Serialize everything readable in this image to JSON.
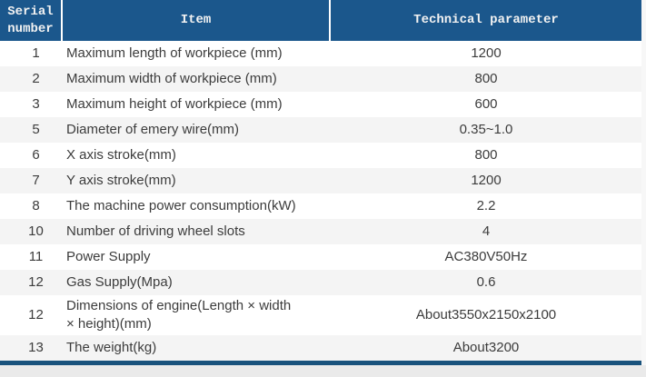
{
  "chart_data": {
    "type": "table",
    "columns": [
      "Serial number",
      "Item",
      "Technical parameter"
    ],
    "rows": [
      {
        "serial": "1",
        "item": "Maximum length of workpiece (mm)",
        "value": "1200"
      },
      {
        "serial": "2",
        "item": "Maximum width of workpiece (mm)",
        "value": "800"
      },
      {
        "serial": "3",
        "item": "Maximum height of workpiece (mm)",
        "value": "600"
      },
      {
        "serial": "5",
        "item": "Diameter of emery wire(mm)",
        "value": "0.35~1.0"
      },
      {
        "serial": "6",
        "item": "X axis stroke(mm)",
        "value": "800"
      },
      {
        "serial": "7",
        "item": "Y axis stroke(mm)",
        "value": "1200"
      },
      {
        "serial": "8",
        "item": "The machine power consumption(kW)",
        "value": "2.2"
      },
      {
        "serial": "10",
        "item": "Number of driving wheel slots",
        "value": "4"
      },
      {
        "serial": "11",
        "item": "Power Supply",
        "value": "AC380V50Hz"
      },
      {
        "serial": "12",
        "item": "Gas Supply(Mpa)",
        "value": "0.6"
      },
      {
        "serial": "12",
        "item": "Dimensions of engine(Length × width\n× height)(mm)",
        "value": "About3550x2150x2100"
      },
      {
        "serial": "13",
        "item": "The weight(kg)",
        "value": "About3200"
      }
    ],
    "layout": {
      "grid": false,
      "striped": true,
      "stripe_start": "white"
    }
  },
  "colors": {
    "header_bg": "#1b578c",
    "header_text": "#f2f2f2",
    "row_bg": "#ffffff",
    "row_alt_bg": "#f4f4f4",
    "body_text": "#3c3c3c",
    "bottom_bar": "#19527c",
    "footer_bg": "#eaeaea"
  }
}
